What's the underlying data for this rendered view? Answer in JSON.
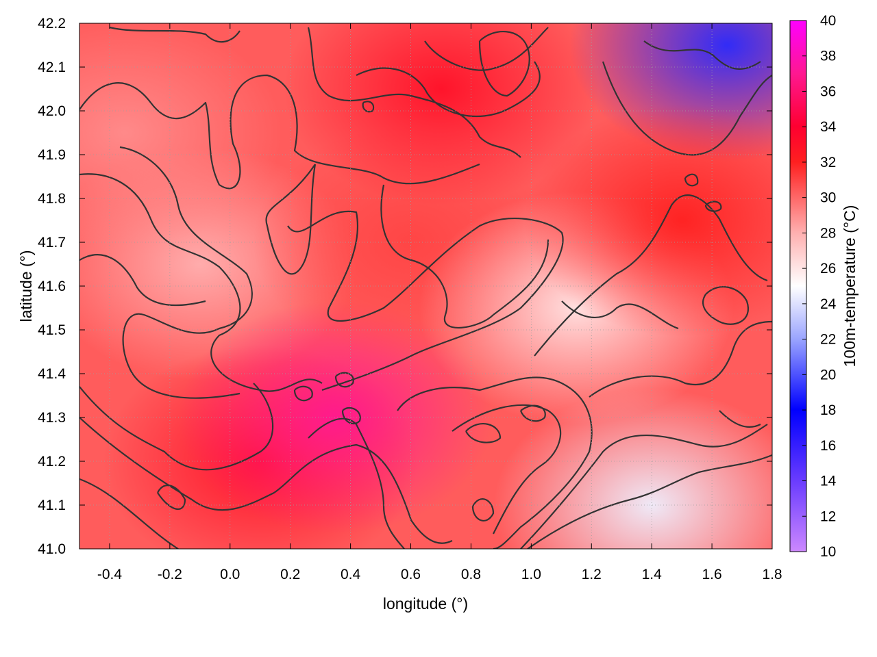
{
  "chart_data": {
    "type": "heatmap",
    "xlabel": "longitude (°)",
    "ylabel": "latitude (°)",
    "colorbar_label": "100m-temperature (°C)",
    "xlim": [
      -0.5,
      1.8
    ],
    "ylim": [
      41.0,
      42.2
    ],
    "x_ticks": [
      "-0.4",
      "-0.2",
      "0.0",
      "0.2",
      "0.4",
      "0.6",
      "0.8",
      "1.0",
      "1.2",
      "1.4",
      "1.6",
      "1.8"
    ],
    "x_tick_values": [
      -0.4,
      -0.2,
      0.0,
      0.2,
      0.4,
      0.6,
      0.8,
      1.0,
      1.2,
      1.4,
      1.6,
      1.8
    ],
    "y_ticks": [
      "41.0",
      "41.1",
      "41.2",
      "41.3",
      "41.4",
      "41.5",
      "41.6",
      "41.7",
      "41.8",
      "41.9",
      "42.0",
      "42.1",
      "42.2"
    ],
    "y_tick_values": [
      41.0,
      41.1,
      41.2,
      41.3,
      41.4,
      41.5,
      41.6,
      41.7,
      41.8,
      41.9,
      42.0,
      42.1,
      42.2
    ],
    "colorbar_range": [
      10,
      40
    ],
    "colorbar_ticks": [
      "10",
      "12",
      "14",
      "16",
      "18",
      "20",
      "22",
      "24",
      "26",
      "28",
      "30",
      "32",
      "34",
      "36",
      "38",
      "40"
    ],
    "colorbar_tick_values": [
      10,
      12,
      14,
      16,
      18,
      20,
      22,
      24,
      26,
      28,
      30,
      32,
      34,
      36,
      38,
      40
    ],
    "colormap": [
      {
        "value": 10,
        "color": "#cc88ff"
      },
      {
        "value": 14,
        "color": "#6a3cff"
      },
      {
        "value": 18,
        "color": "#0000ff"
      },
      {
        "value": 22,
        "color": "#9aa4ff"
      },
      {
        "value": 25,
        "color": "#ffffff"
      },
      {
        "value": 28,
        "color": "#ffb0b0"
      },
      {
        "value": 32,
        "color": "#ff2020"
      },
      {
        "value": 34,
        "color": "#ff0030"
      },
      {
        "value": 37,
        "color": "#ff1890"
      },
      {
        "value": 40,
        "color": "#ff00ff"
      }
    ],
    "grid": true,
    "contour_color": "#333333",
    "temperature_regions": [
      {
        "lon": -0.1,
        "lat": 41.65,
        "temp": 28
      },
      {
        "lon": 0.1,
        "lat": 41.2,
        "temp": 33
      },
      {
        "lon": 0.35,
        "lat": 41.3,
        "temp": 37
      },
      {
        "lon": 0.6,
        "lat": 41.7,
        "temp": 31
      },
      {
        "lon": 0.7,
        "lat": 42.05,
        "temp": 33
      },
      {
        "lon": 1.15,
        "lat": 41.55,
        "temp": 26
      },
      {
        "lon": 1.4,
        "lat": 41.1,
        "temp": 24.5
      },
      {
        "lon": 1.65,
        "lat": 42.15,
        "temp": 19
      },
      {
        "lon": 1.5,
        "lat": 41.75,
        "temp": 32
      },
      {
        "lon": -0.35,
        "lat": 41.95,
        "temp": 29
      }
    ]
  }
}
